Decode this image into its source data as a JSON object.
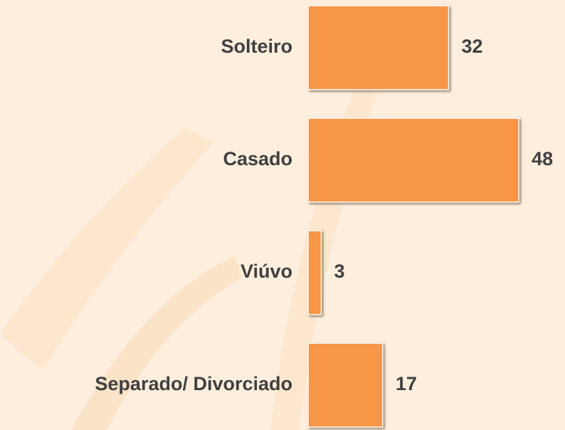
{
  "chart_data": {
    "type": "bar",
    "orientation": "horizontal",
    "categories": [
      "Solteiro",
      "Casado",
      "Viúvo",
      "Separado/ Divorciado"
    ],
    "values": [
      32,
      48,
      3,
      17
    ],
    "color": "#f79646"
  }
}
